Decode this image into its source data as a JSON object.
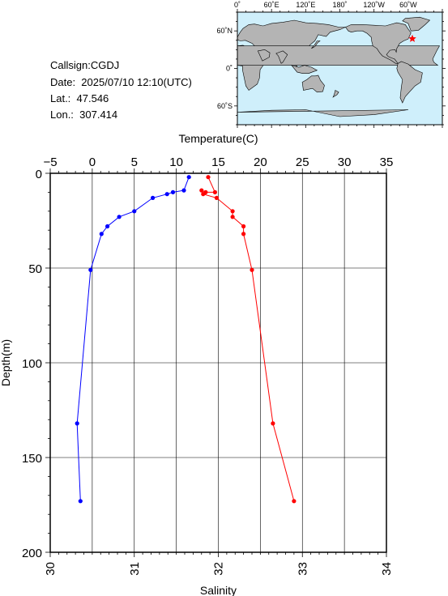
{
  "info": {
    "callsign": "Callsign:CGDJ",
    "date": "Date:  2025/07/10 12:10(UTC)",
    "lat": "Lat.:  47.546",
    "lon": "Lon.:  307.414"
  },
  "map": {
    "top_labels": [
      "0˚",
      "60˚E",
      "120˚E",
      "180˚",
      "120˚W",
      "60˚W"
    ],
    "left_labels": [
      "60˚N",
      "0˚",
      "60˚S"
    ],
    "ocean_color": "#cfeffb",
    "land_color": "#b4b4b4",
    "marker_color": "#ff0000",
    "marker_icon": "star-icon"
  },
  "chart_data": {
    "type": "line",
    "ylabel": "Depth(m)",
    "ylim": [
      0,
      200
    ],
    "y_ticks": [
      "0",
      "50",
      "100",
      "150",
      "200"
    ],
    "y_inverted": true,
    "grid": true,
    "top_axis": {
      "label": "Temperature(C)",
      "lim": [
        -5,
        35
      ],
      "ticks": [
        "−5",
        "0",
        "5",
        "10",
        "15",
        "20",
        "25",
        "30",
        "35"
      ]
    },
    "bottom_axis": {
      "label": "Salinity",
      "lim": [
        30,
        34
      ],
      "ticks": [
        "30",
        "31",
        "32",
        "33",
        "34"
      ]
    },
    "series": [
      {
        "axis": "top",
        "color": "#0000ff",
        "points": [
          {
            "x": 11.5,
            "y": 2
          },
          {
            "x": 10.9,
            "y": 9
          },
          {
            "x": 9.6,
            "y": 10
          },
          {
            "x": 8.9,
            "y": 11
          },
          {
            "x": 7.2,
            "y": 13
          },
          {
            "x": 5.0,
            "y": 20
          },
          {
            "x": 3.2,
            "y": 23
          },
          {
            "x": 1.8,
            "y": 28
          },
          {
            "x": 1.1,
            "y": 32
          },
          {
            "x": -0.2,
            "y": 51
          },
          {
            "x": -1.8,
            "y": 132
          },
          {
            "x": -1.4,
            "y": 173
          }
        ]
      },
      {
        "axis": "bottom",
        "color": "#ff0000",
        "points": [
          {
            "x": 31.88,
            "y": 2
          },
          {
            "x": 31.96,
            "y": 10
          },
          {
            "x": 31.85,
            "y": 10
          },
          {
            "x": 31.8,
            "y": 9
          },
          {
            "x": 31.82,
            "y": 11
          },
          {
            "x": 31.98,
            "y": 13
          },
          {
            "x": 32.17,
            "y": 20
          },
          {
            "x": 32.17,
            "y": 23
          },
          {
            "x": 32.3,
            "y": 28
          },
          {
            "x": 32.3,
            "y": 32
          },
          {
            "x": 32.4,
            "y": 51
          },
          {
            "x": 32.65,
            "y": 132
          },
          {
            "x": 32.9,
            "y": 173
          }
        ]
      }
    ]
  }
}
